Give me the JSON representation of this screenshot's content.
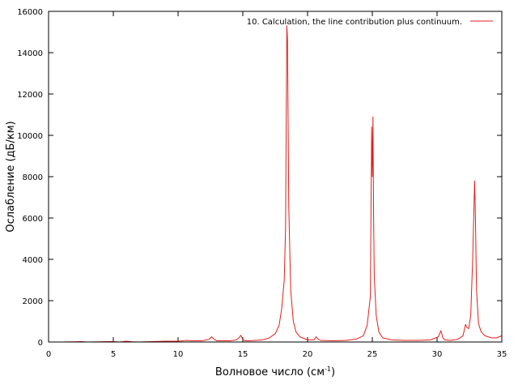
{
  "chart_data": {
    "type": "line",
    "xlabel": "Волновое число (см",
    "xlabel_sup": "-1",
    "xlabel_suffix": ")",
    "ylabel": "Ослабление (дБ/км)",
    "xlim": [
      0,
      35
    ],
    "ylim": [
      0,
      16000
    ],
    "x_ticks": [
      0,
      5,
      10,
      15,
      20,
      25,
      30,
      35
    ],
    "y_ticks": [
      0,
      2000,
      4000,
      6000,
      8000,
      10000,
      12000,
      14000,
      16000
    ],
    "grid": false,
    "legend_position": "top-right",
    "series": [
      {
        "name": "10. Calculation, the line contribution plus continuum.",
        "color": "#e0201b",
        "x": [
          0.5,
          1,
          2,
          2.5,
          3,
          4,
          5,
          5.5,
          6,
          6.5,
          7,
          8,
          9,
          10,
          10.7,
          11,
          11.8,
          12,
          12.4,
          12.6,
          12.8,
          13,
          14,
          14.5,
          14.7,
          14.85,
          15,
          15.2,
          15.5,
          16,
          16.5,
          17,
          17.5,
          17.8,
          18,
          18.2,
          18.3,
          18.4,
          18.45,
          18.55,
          18.7,
          18.9,
          19.1,
          19.4,
          20,
          20.5,
          20.65,
          20.8,
          21,
          22,
          23,
          23.8,
          24.3,
          24.6,
          24.85,
          24.95,
          25.0,
          25.05,
          25.1,
          25.15,
          25.3,
          25.5,
          25.8,
          26.5,
          27.5,
          28.5,
          29.5,
          30.1,
          30.3,
          30.45,
          30.6,
          31,
          31.6,
          32.0,
          32.2,
          32.3,
          32.45,
          32.6,
          32.75,
          32.9,
          32.95,
          33.05,
          33.2,
          33.4,
          33.7,
          34.2,
          34.6,
          35
        ],
        "y": [
          0,
          0,
          10,
          20,
          0,
          10,
          20,
          0,
          40,
          10,
          0,
          20,
          40,
          40,
          80,
          60,
          60,
          80,
          130,
          250,
          120,
          60,
          60,
          100,
          200,
          320,
          120,
          60,
          60,
          80,
          100,
          180,
          400,
          800,
          1600,
          3000,
          5500,
          15300,
          14600,
          6500,
          2500,
          1000,
          500,
          250,
          100,
          100,
          250,
          150,
          80,
          60,
          80,
          150,
          300,
          800,
          2200,
          10400,
          8000,
          10900,
          6000,
          3200,
          1300,
          500,
          200,
          100,
          80,
          80,
          100,
          250,
          550,
          200,
          100,
          80,
          130,
          300,
          850,
          700,
          650,
          1300,
          4000,
          7800,
          6500,
          2500,
          900,
          500,
          300,
          200,
          200,
          300
        ]
      }
    ]
  }
}
